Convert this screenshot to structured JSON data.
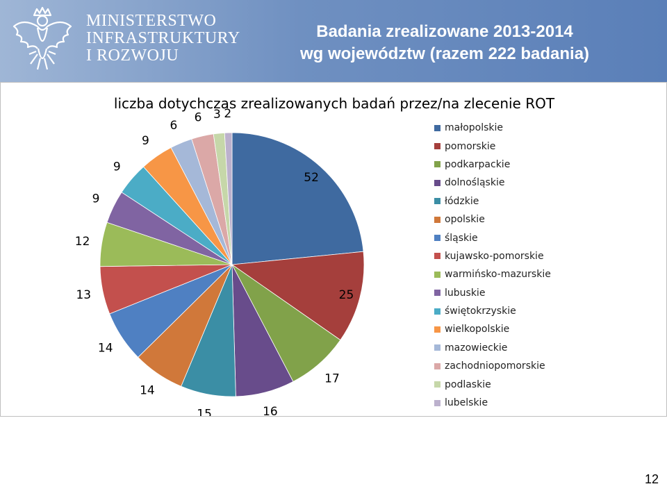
{
  "header": {
    "ministry_lines": [
      "MINISTERSTWO",
      "INFRASTRUKTURY",
      "I ROZWOJU"
    ],
    "emblem_icon": "white-eagle-icon",
    "title_line1": "Badania zrealizowane 2013-2014",
    "title_line2": "wg województw (razem 222 badania)"
  },
  "chart_data": {
    "type": "pie",
    "title": "liczba dotychczas zrealizowanych badań przez/na zlecenie ROT",
    "legend_position": "right",
    "categories": [
      "małopolskie",
      "pomorskie",
      "podkarpackie",
      "dolnośląskie",
      "łódzkie",
      "opolskie",
      "śląskie",
      "kujawsko-pomorskie",
      "warmińsko-mazurskie",
      "lubuskie",
      "świętokrzyskie",
      "wielkopolskie",
      "mazowieckie",
      "zachodniopomorskie",
      "podlaskie",
      "lubelskie"
    ],
    "values": [
      52,
      25,
      17,
      16,
      15,
      14,
      14,
      13,
      12,
      9,
      9,
      9,
      6,
      6,
      3,
      2
    ],
    "colors": [
      "#3f6aa0",
      "#a53f3c",
      "#81a24a",
      "#684c8b",
      "#3b8ea5",
      "#d0783a",
      "#4f80c2",
      "#c3504d",
      "#9bbb59",
      "#8064a2",
      "#4bacc6",
      "#f79646",
      "#a5b8d8",
      "#dba8a7",
      "#c6d7a9",
      "#bcb1cd"
    ]
  },
  "page_number": "12"
}
